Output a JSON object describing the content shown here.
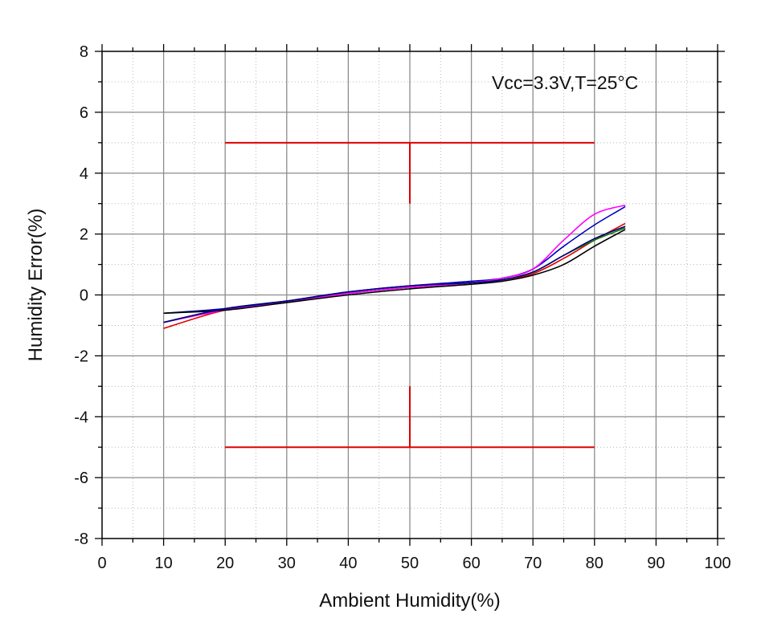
{
  "chart_data": {
    "type": "line",
    "xlabel": "Ambient Humidity(%)",
    "ylabel": "Humidity Error(%)",
    "xlim": [
      0,
      100
    ],
    "ylim": [
      -8,
      8
    ],
    "x_ticks": [
      0,
      10,
      20,
      30,
      40,
      50,
      60,
      70,
      80,
      90,
      100
    ],
    "y_ticks": [
      -8,
      -6,
      -4,
      -2,
      0,
      2,
      4,
      6,
      8
    ],
    "x_minor_step": 5,
    "y_minor_step": 1,
    "grid": "major solid, minor dotted",
    "annotation": "Vcc=3.3V,T=25°C",
    "tolerance_band": {
      "color": "#e00000",
      "upper": {
        "x_start": 20,
        "x_end": 80,
        "y": 5,
        "marker_x": 50,
        "marker_y_end": 3
      },
      "lower": {
        "x_start": 20,
        "x_end": 80,
        "y": -5,
        "marker_x": 50,
        "marker_y_end": -3
      }
    },
    "series": [
      {
        "color": "#e00000",
        "x": [
          10,
          20,
          30,
          40,
          50,
          60,
          65,
          70,
          75,
          80,
          85
        ],
        "y": [
          -1.1,
          -0.5,
          -0.25,
          0.05,
          0.25,
          0.4,
          0.5,
          0.7,
          1.2,
          1.8,
          2.35
        ]
      },
      {
        "color": "#008000",
        "x": [
          10,
          20,
          30,
          40,
          50,
          60,
          65,
          70,
          75,
          80,
          85
        ],
        "y": [
          -0.9,
          -0.45,
          -0.2,
          0.05,
          0.25,
          0.4,
          0.5,
          0.75,
          1.3,
          1.8,
          2.2
        ]
      },
      {
        "color": "#0000c0",
        "x": [
          10,
          20,
          30,
          40,
          50,
          60,
          65,
          70,
          75,
          80,
          85
        ],
        "y": [
          -0.6,
          -0.45,
          -0.2,
          0.1,
          0.3,
          0.45,
          0.55,
          0.85,
          1.6,
          2.3,
          2.9
        ]
      },
      {
        "color": "#ff00ff",
        "x": [
          10,
          20,
          30,
          40,
          50,
          60,
          65,
          70,
          75,
          80,
          85
        ],
        "y": [
          -0.9,
          -0.5,
          -0.25,
          0.05,
          0.25,
          0.4,
          0.55,
          0.85,
          1.8,
          2.65,
          2.95
        ]
      },
      {
        "color": "#000000",
        "x": [
          10,
          20,
          30,
          40,
          50,
          60,
          65,
          70,
          75,
          80,
          85
        ],
        "y": [
          -0.6,
          -0.5,
          -0.25,
          0.0,
          0.2,
          0.35,
          0.45,
          0.65,
          1.0,
          1.6,
          2.15
        ]
      },
      {
        "color": "#000080",
        "x": [
          10,
          20,
          30,
          40,
          50,
          60,
          65,
          70,
          75,
          80,
          85
        ],
        "y": [
          -0.9,
          -0.45,
          -0.2,
          0.1,
          0.3,
          0.4,
          0.5,
          0.75,
          1.3,
          1.85,
          2.25
        ]
      }
    ]
  }
}
